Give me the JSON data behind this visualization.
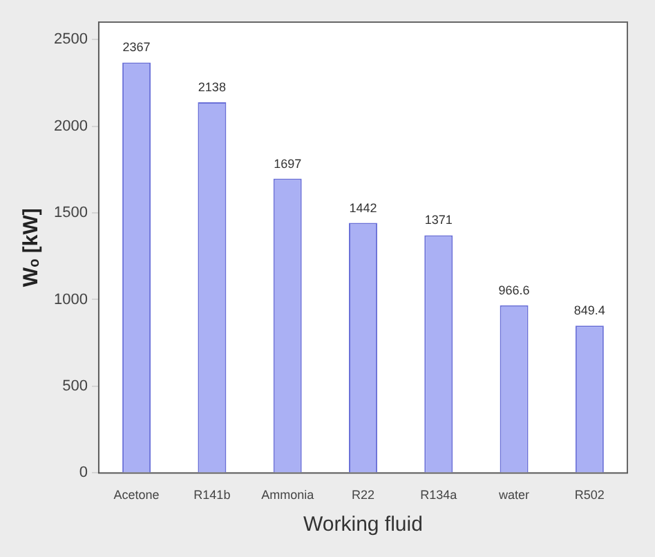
{
  "chart_data": {
    "type": "bar",
    "xlabel": "Working fluid",
    "ylabel": "Wₒ [kW]",
    "categories": [
      "Acetone",
      "R141b",
      "Ammonia",
      "R22",
      "R134a",
      "water",
      "R502"
    ],
    "values": [
      2367,
      2138,
      1697,
      1442,
      1371,
      966.6,
      849.4
    ],
    "color": "#aab0f4",
    "ylim": [
      0,
      2600
    ],
    "yticks": [
      0,
      500,
      1000,
      1500,
      2000,
      2500
    ],
    "grid": false,
    "data_labels": true
  }
}
